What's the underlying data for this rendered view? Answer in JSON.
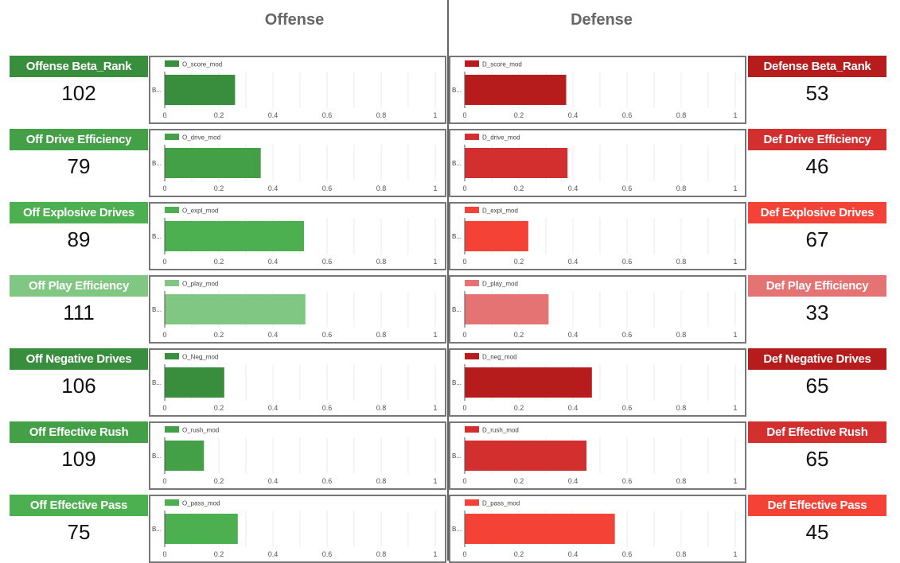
{
  "sections": {
    "offense": "Offense",
    "defense": "Defense"
  },
  "chart_data": {
    "type": "bar",
    "orientation": "horizontal",
    "xlim": [
      0,
      1
    ],
    "x_ticks": [
      "0",
      "0.2",
      "0.4",
      "0.6",
      "0.8",
      "1"
    ],
    "grid": true,
    "category_label": "B...",
    "legend_position": "top-left",
    "offense": [
      {
        "title": "Offense Beta_Rank",
        "rank": "102",
        "series": "O_score_mod",
        "value": 0.26,
        "color": "#388e3c"
      },
      {
        "title": "Off Drive Efficiency",
        "rank": "79",
        "series": "O_drive_mod",
        "value": 0.355,
        "color": "#43a047"
      },
      {
        "title": "Off Explosive Drives",
        "rank": "89",
        "series": "O_expl_mod",
        "value": 0.515,
        "color": "#4caf50"
      },
      {
        "title": "Off Play Efficiency",
        "rank": "111",
        "series": "O_play_mod",
        "value": 0.52,
        "color": "#81c784"
      },
      {
        "title": "Off Negative Drives",
        "rank": "106",
        "series": "O_Neg_mod",
        "value": 0.22,
        "color": "#388e3c"
      },
      {
        "title": "Off Effective Rush",
        "rank": "109",
        "series": "O_rush_mod",
        "value": 0.145,
        "color": "#43a047"
      },
      {
        "title": "Off Effective Pass",
        "rank": "75",
        "series": "O_pass_mod",
        "value": 0.27,
        "color": "#4caf50"
      }
    ],
    "defense": [
      {
        "title": "Defense Beta_Rank",
        "rank": "53",
        "series": "D_score_mod",
        "value": 0.375,
        "color": "#b71c1c"
      },
      {
        "title": "Def Drive Efficiency",
        "rank": "46",
        "series": "D_drive_mod",
        "value": 0.38,
        "color": "#d32f2f"
      },
      {
        "title": "Def Explosive Drives",
        "rank": "67",
        "series": "D_expl_mod",
        "value": 0.235,
        "color": "#f44336"
      },
      {
        "title": "Def Play Efficiency",
        "rank": "33",
        "series": "D_play_mod",
        "value": 0.31,
        "color": "#e57373"
      },
      {
        "title": "Def Negative Drives",
        "rank": "65",
        "series": "D_neg_mod",
        "value": 0.47,
        "color": "#b71c1c"
      },
      {
        "title": "Def Effective Rush",
        "rank": "65",
        "series": "D_rush_mod",
        "value": 0.45,
        "color": "#d32f2f"
      },
      {
        "title": "Def Effective Pass",
        "rank": "45",
        "series": "D_pass_mod",
        "value": 0.555,
        "color": "#f44336"
      }
    ]
  }
}
